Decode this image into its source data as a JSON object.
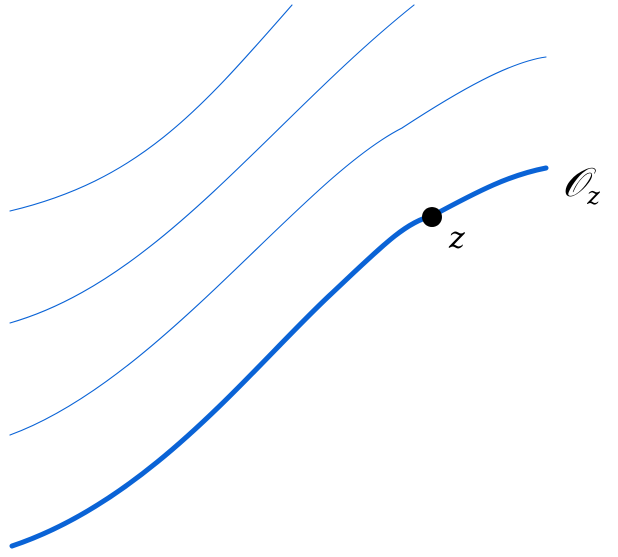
{
  "colors": {
    "curve": "#0a63d6",
    "point": "#000000",
    "text": "#000000"
  },
  "labels": {
    "orbit_symbol": "𝒪",
    "orbit_subscript": "z",
    "point": "z"
  }
}
